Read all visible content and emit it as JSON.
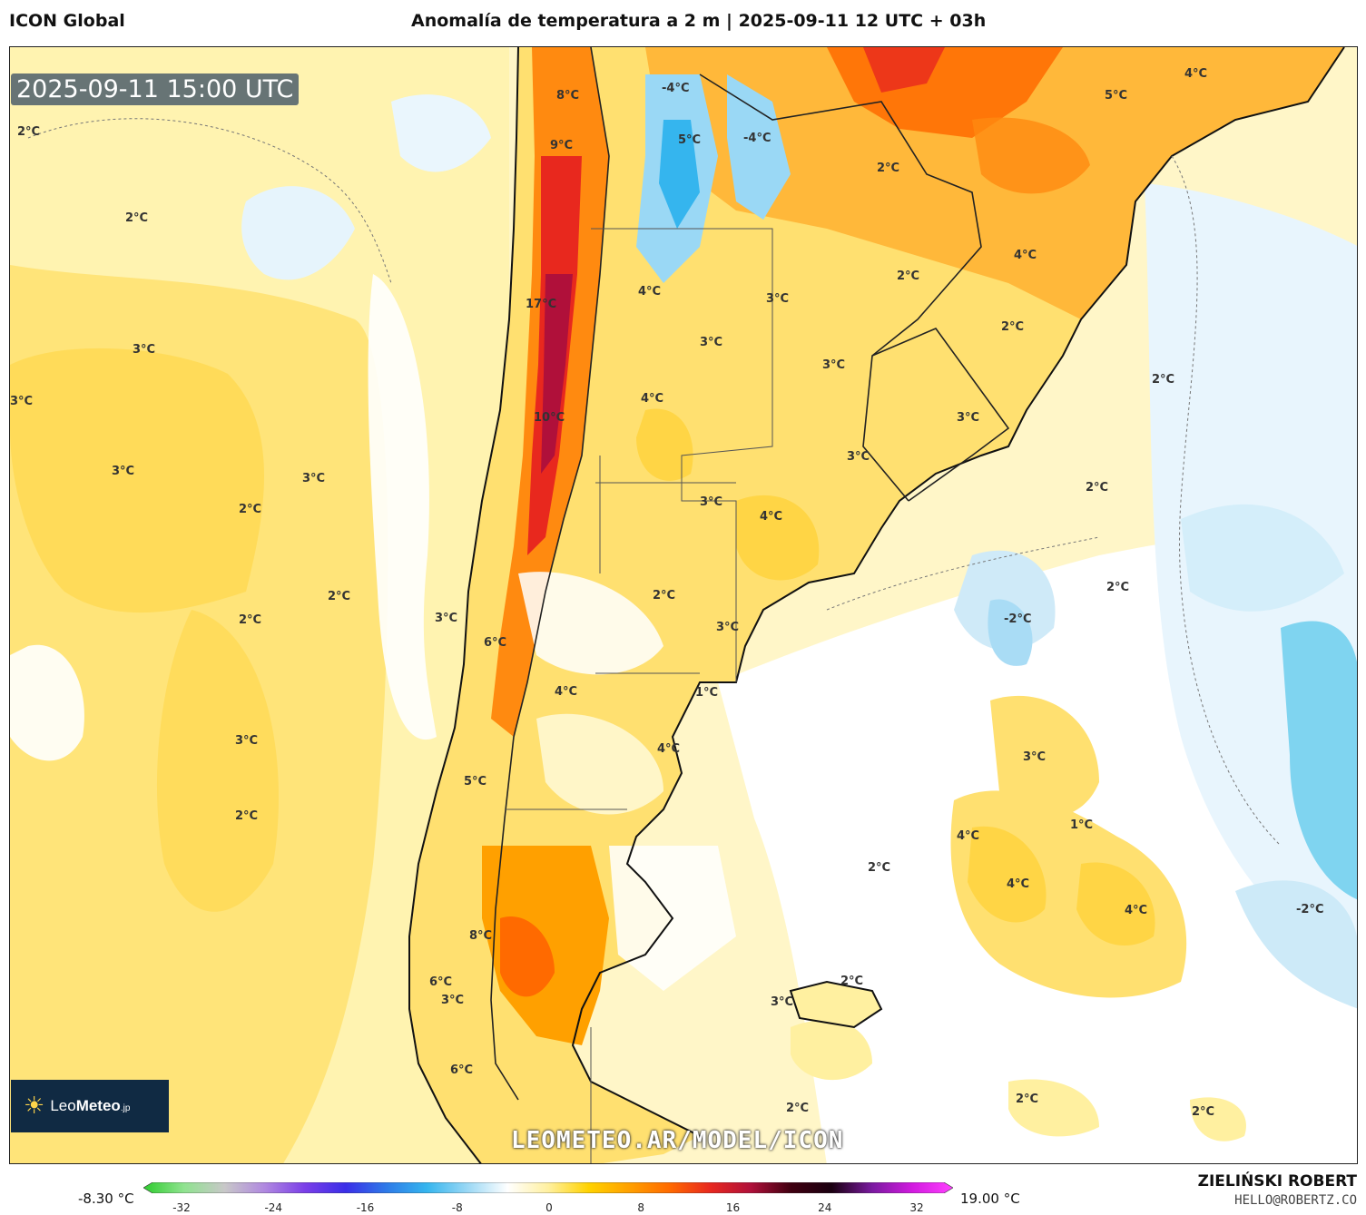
{
  "header": {
    "model": "ICON Global",
    "title": "Anomalía de temperatura a 2 m | 2025-09-11 12 UTC + 03h"
  },
  "map": {
    "valid_time": "2025-09-11 15:00 UTC",
    "watermark": "LEOMETEO.AR/MODEL/ICON",
    "logo": {
      "prefix": "Leo",
      "strong": "Meteo",
      "suffix": ".jp"
    },
    "contour_labels": [
      "2°C",
      "2°C",
      "3°C",
      "3°C",
      "3°C",
      "3°C",
      "2°C",
      "2°C",
      "2°C",
      "3°C",
      "2°C",
      "8°C",
      "9°C",
      "17°C",
      "10°C",
      "4°C",
      "4°C",
      "3°C",
      "3°C",
      "3°C",
      "4°C",
      "3°C",
      "2°C",
      "3°C",
      "6°C",
      "4°C",
      "1°C",
      "4°C",
      "5°C",
      "8°C",
      "6°C",
      "6°C",
      "-4°C",
      "5°C",
      "-4°C",
      "2°C",
      "5°C",
      "4°C",
      "2°C",
      "4°C",
      "2°C",
      "3°C",
      "3°C",
      "2°C",
      "2°C",
      "2°C",
      "-2°C",
      "3°C",
      "3°C",
      "4°C",
      "4°C",
      "4°C",
      "-2°C",
      "2°C",
      "2°C",
      "3°C",
      "2°C",
      "2°C",
      "2°C",
      "1°C",
      "3°C"
    ]
  },
  "colorbar": {
    "min_label": "-8.30 °C",
    "max_label": "19.00 °C",
    "ticks": [
      "-32",
      "-24",
      "-16",
      "-8",
      "0",
      "8",
      "16",
      "24",
      "32"
    ],
    "colors": [
      "#2ecc2e",
      "#8fe38f",
      "#c8c8c8",
      "#b088e0",
      "#7a3ee8",
      "#3a2ee8",
      "#2e7ae8",
      "#35b5ee",
      "#9ad8f5",
      "#ffffff",
      "#fff0a0",
      "#ffd200",
      "#ffa000",
      "#ff6a00",
      "#e8281e",
      "#b0103a",
      "#400010",
      "#1a0010",
      "#7a1aa0",
      "#d21ae0",
      "#ff40ff"
    ]
  },
  "credits": {
    "author": "ZIELIŃSKI ROBERT",
    "contact": "HELLO@ROBERTZ.CO"
  }
}
